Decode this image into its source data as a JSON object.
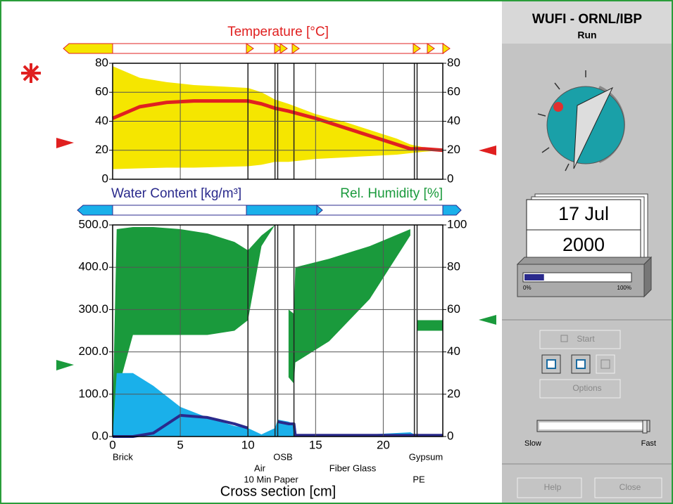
{
  "window": {
    "title": "WUFI - ORNL/IBP",
    "subtitle": "Run",
    "date_day": "17 Jul",
    "date_year": "2000",
    "progress": {
      "value": 18,
      "min_label": "0%",
      "max_label": "100%"
    },
    "buttons": {
      "start": "Start",
      "options": "Options",
      "help": "Help",
      "close": "Close"
    },
    "speed": {
      "slow": "Slow",
      "fast": "Fast"
    }
  },
  "chart_data": [
    {
      "type": "band-line",
      "title": "Temperature [°C]",
      "x": [
        0,
        2,
        4,
        6,
        8,
        10,
        11,
        12,
        13,
        15,
        17,
        19,
        21,
        22,
        23,
        24.4
      ],
      "xlim": [
        0,
        24.4
      ],
      "xticks": [
        0,
        5,
        10,
        15,
        20
      ],
      "ylim": [
        0,
        80
      ],
      "yticks": [
        0,
        20,
        40,
        60,
        80
      ],
      "y2lim": [
        0,
        80
      ],
      "y2ticks": [
        0,
        20,
        40,
        60,
        80
      ],
      "series": [
        {
          "color": "#f5e600",
          "upper": [
            78,
            70,
            67,
            65,
            64,
            63,
            60,
            55,
            52,
            45,
            40,
            34,
            28,
            24,
            22,
            20
          ],
          "lower": [
            7,
            7.5,
            8,
            8,
            8.5,
            9,
            10,
            12,
            12,
            14,
            15,
            16,
            17,
            18,
            19,
            20
          ]
        },
        {
          "color": "#e02020",
          "values": [
            42,
            50,
            53,
            54,
            54,
            54,
            52,
            49,
            47,
            42,
            36,
            30,
            24,
            21,
            21,
            20
          ]
        }
      ]
    },
    {
      "type": "band-line",
      "ylabel": "Water Content [kg/m³]",
      "y2label": "Rel. Humidity [%]",
      "xlabel": "Cross section [cm]",
      "x": [
        0,
        0.3,
        1.5,
        3,
        5,
        7,
        9,
        10,
        11,
        12,
        12.2,
        13,
        13.4,
        13.5,
        16,
        19,
        22,
        22.3,
        22.5,
        24.4
      ],
      "xlim": [
        0,
        24.4
      ],
      "xticks": [
        0,
        5,
        10,
        15,
        20
      ],
      "ylim": [
        0,
        500
      ],
      "yticks": [
        {
          "value": 0,
          "label": "0.0"
        },
        {
          "value": 100,
          "label": "100.0"
        },
        {
          "value": 200,
          "label": "200.0"
        },
        {
          "value": 300,
          "label": "300.0"
        },
        {
          "value": 400,
          "label": "400.0"
        },
        {
          "value": 500,
          "label": "500.0"
        }
      ],
      "y2lim": [
        0,
        100
      ],
      "y2ticks": [
        0,
        20,
        40,
        60,
        80,
        100
      ],
      "series": [
        {
          "axis": "y2",
          "color": "#1a9a3c",
          "upper": [
            10,
            98,
            99,
            99,
            98,
            96,
            92,
            88,
            95,
            100,
            null,
            60,
            58,
            80,
            84,
            90,
            98,
            null,
            55,
            55
          ],
          "lower": [
            0,
            20,
            48,
            48,
            48,
            48,
            50,
            55,
            90,
            100,
            null,
            28,
            25,
            35,
            45,
            65,
            95,
            null,
            50,
            50
          ]
        },
        {
          "color": "#1ab0ea",
          "values": [
            0,
            150,
            150,
            120,
            70,
            45,
            25,
            20,
            5,
            20,
            40,
            35,
            30,
            5,
            5,
            5,
            10,
            5,
            5,
            5
          ]
        },
        {
          "color": "#2a2a8c",
          "values": [
            0,
            0,
            0,
            8,
            50,
            45,
            30,
            20,
            null,
            null,
            35,
            30,
            30,
            3,
            3,
            3,
            3,
            3,
            3,
            3
          ]
        }
      ],
      "layer_boundaries": [
        10,
        12,
        12.2,
        13.4,
        22.3,
        22.5
      ],
      "layer_labels": [
        "Brick",
        "Air",
        "10 Min Paper",
        "OSB",
        "Fiber Glass",
        "PE",
        "Gypsum"
      ]
    }
  ]
}
